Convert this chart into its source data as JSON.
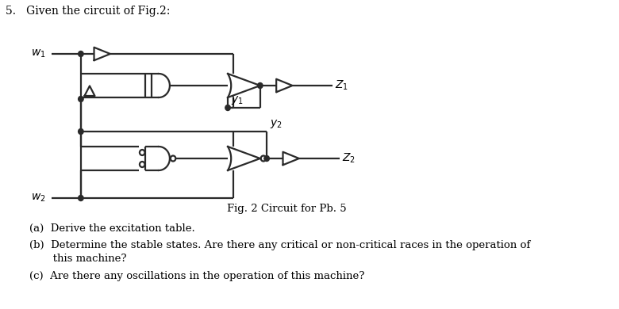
{
  "bg_color": "#ffffff",
  "line_color": "#2a2a2a",
  "lw": 1.6,
  "title": "5.   Given the circuit of Fig.2:",
  "caption": "Fig. 2 Circuit for Pb. 5",
  "qa": "(a)  Derive the excitation table.",
  "qb1": "(b)  Determine the stable states. Are there any critical or non-critical races in the operation of",
  "qb2": "       this machine?",
  "qc": "(c)  Are there any oscillations in the operation of this machine?"
}
